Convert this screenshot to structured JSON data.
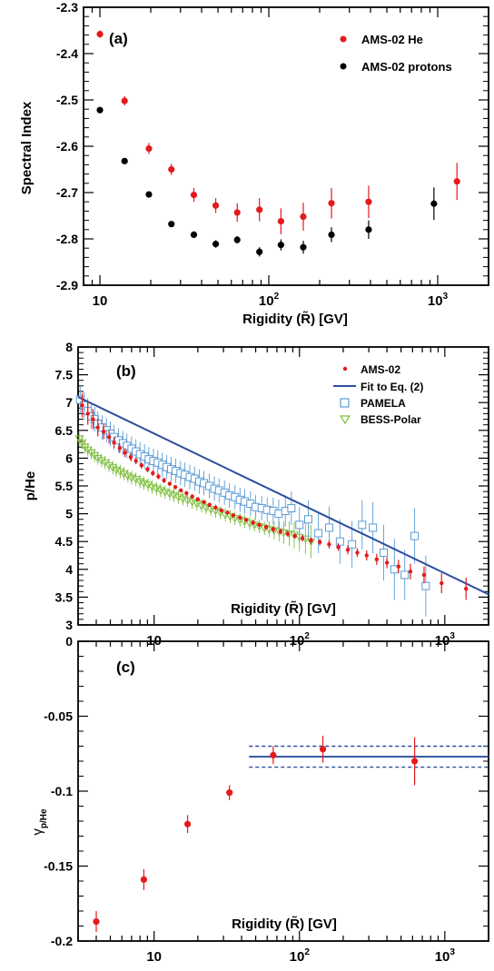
{
  "chart_data": [
    {
      "panel": "(a)",
      "type": "scatter",
      "xlabel_main": "Rigidity (",
      "xlabel_sym": "R̃",
      "xlabel_tail": ") [GV]",
      "ylabel": "Spectral Index",
      "x_scale": "log",
      "xlim": [
        8,
        2000
      ],
      "ylim": [
        -2.9,
        -2.3
      ],
      "y_ticks": [
        -2.9,
        -2.8,
        -2.7,
        -2.6,
        -2.5,
        -2.4,
        -2.3
      ],
      "y_tick_labels": [
        "-2.9",
        "-2.8",
        "-2.7",
        "-2.6",
        "-2.5",
        "-2.4",
        "-2.3"
      ],
      "legend_position": "top-right",
      "series": [
        {
          "name": "AMS-02 He",
          "color": "#e41a1c",
          "x": [
            10,
            14,
            19.5,
            26.5,
            36,
            48.5,
            65,
            88,
            118,
            160,
            235,
            390,
            1300
          ],
          "y": [
            -2.358,
            -2.502,
            -2.605,
            -2.65,
            -2.705,
            -2.728,
            -2.743,
            -2.737,
            -2.762,
            -2.752,
            -2.723,
            -2.72,
            -2.676
          ],
          "err": [
            0.008,
            0.01,
            0.012,
            0.012,
            0.015,
            0.016,
            0.02,
            0.025,
            0.028,
            0.03,
            0.033,
            0.035,
            0.04
          ]
        },
        {
          "name": "AMS-02 protons",
          "color": "#000000",
          "x": [
            10,
            14,
            19.5,
            26.5,
            36,
            48.5,
            65,
            88,
            118,
            160,
            235,
            390,
            950
          ],
          "y": [
            -2.522,
            -2.632,
            -2.704,
            -2.768,
            -2.791,
            -2.811,
            -2.802,
            -2.828,
            -2.813,
            -2.818,
            -2.791,
            -2.78,
            -2.724
          ],
          "err": [
            0.004,
            0.005,
            0.006,
            0.006,
            0.007,
            0.008,
            0.008,
            0.01,
            0.012,
            0.014,
            0.016,
            0.02,
            0.035
          ]
        }
      ]
    },
    {
      "panel": "(b)",
      "type": "scatter",
      "xlabel_main": "Rigidity (",
      "xlabel_sym": "R̃",
      "xlabel_tail": ") [GV]",
      "ylabel": "p/He",
      "x_scale": "log",
      "xlim": [
        3,
        2000
      ],
      "ylim": [
        3,
        8
      ],
      "y_ticks": [
        3,
        3.5,
        4,
        4.5,
        5,
        5.5,
        6,
        6.5,
        7,
        7.5,
        8
      ],
      "y_tick_labels": [
        "3",
        "3.5",
        "4",
        "4.5",
        "5",
        "5.5",
        "6",
        "6.5",
        "7",
        "7.5",
        "8"
      ],
      "legend_position": "top-right",
      "fit_label": "Fit to Eq. (2)",
      "fit_color": "#2c4f9e",
      "fit_x": [
        3,
        2000
      ],
      "fit_y": [
        7.1,
        3.55
      ],
      "series": [
        {
          "name": "AMS-02",
          "color": "#e41a1c",
          "x": [
            3.2,
            3.5,
            3.8,
            4.1,
            4.5,
            4.9,
            5.3,
            5.8,
            6.3,
            6.9,
            7.5,
            8.2,
            9,
            9.8,
            10.7,
            11.7,
            12.8,
            14,
            15.3,
            16.7,
            18.3,
            20,
            22,
            24,
            26.5,
            29,
            32,
            35,
            39,
            43,
            48,
            53,
            59,
            66,
            74,
            83,
            93,
            105,
            120,
            138,
            160,
            185,
            215,
            250,
            290,
            340,
            400,
            480,
            580,
            720,
            950,
            1400
          ],
          "y": [
            6.95,
            6.8,
            6.7,
            6.55,
            6.48,
            6.38,
            6.28,
            6.18,
            6.1,
            6.02,
            5.95,
            5.87,
            5.8,
            5.73,
            5.67,
            5.6,
            5.54,
            5.48,
            5.42,
            5.37,
            5.31,
            5.26,
            5.21,
            5.16,
            5.11,
            5.06,
            5.02,
            4.97,
            4.93,
            4.89,
            4.84,
            4.8,
            4.76,
            4.72,
            4.68,
            4.64,
            4.6,
            4.56,
            4.52,
            4.49,
            4.45,
            4.4,
            4.35,
            4.3,
            4.25,
            4.18,
            4.12,
            4.05,
            3.96,
            3.9,
            3.75,
            3.65
          ],
          "err": [
            0.22,
            0.2,
            0.18,
            0.16,
            0.14,
            0.12,
            0.1,
            0.09,
            0.08,
            0.07,
            0.06,
            0.06,
            0.05,
            0.05,
            0.05,
            0.05,
            0.04,
            0.04,
            0.04,
            0.04,
            0.04,
            0.04,
            0.04,
            0.04,
            0.04,
            0.04,
            0.04,
            0.04,
            0.04,
            0.04,
            0.04,
            0.04,
            0.05,
            0.05,
            0.05,
            0.05,
            0.05,
            0.06,
            0.06,
            0.06,
            0.07,
            0.07,
            0.08,
            0.08,
            0.09,
            0.1,
            0.1,
            0.12,
            0.14,
            0.15,
            0.18,
            0.2
          ]
        },
        {
          "name": "PAMELA",
          "color": "#5b9bd5",
          "x": [
            3.1,
            3.3,
            3.5,
            3.7,
            3.9,
            4.1,
            4.4,
            4.7,
            5,
            5.3,
            5.7,
            6.1,
            6.5,
            7,
            7.5,
            8,
            8.6,
            9.2,
            9.9,
            10.6,
            11.4,
            12.2,
            13.1,
            14.1,
            15.2,
            16.3,
            17.6,
            19,
            20.5,
            22,
            24,
            26,
            28,
            30.5,
            33,
            36,
            39,
            42,
            46,
            50,
            55,
            60,
            66,
            72,
            80,
            88,
            100,
            115,
            135,
            160,
            190,
            230,
            270,
            320,
            380,
            450,
            530,
            620,
            740
          ],
          "y": [
            7.05,
            6.95,
            6.85,
            6.75,
            6.7,
            6.62,
            6.55,
            6.5,
            6.44,
            6.38,
            6.32,
            6.27,
            6.22,
            6.17,
            6.12,
            6.07,
            6.03,
            5.98,
            5.95,
            5.92,
            5.88,
            5.84,
            5.8,
            5.77,
            5.73,
            5.7,
            5.66,
            5.63,
            5.58,
            5.55,
            5.5,
            5.45,
            5.42,
            5.38,
            5.33,
            5.3,
            5.25,
            5.22,
            5.18,
            5.12,
            5.1,
            5.07,
            5.05,
            5.0,
            5.05,
            5.1,
            4.8,
            4.9,
            4.65,
            4.75,
            4.5,
            4.45,
            4.8,
            4.75,
            4.3,
            4.0,
            3.9,
            4.6,
            3.7
          ],
          "err": [
            0.25,
            0.24,
            0.23,
            0.22,
            0.22,
            0.22,
            0.22,
            0.22,
            0.22,
            0.22,
            0.22,
            0.22,
            0.22,
            0.22,
            0.22,
            0.22,
            0.22,
            0.22,
            0.22,
            0.22,
            0.22,
            0.22,
            0.22,
            0.22,
            0.22,
            0.22,
            0.22,
            0.22,
            0.22,
            0.22,
            0.22,
            0.22,
            0.22,
            0.22,
            0.22,
            0.22,
            0.22,
            0.22,
            0.22,
            0.22,
            0.22,
            0.22,
            0.24,
            0.26,
            0.28,
            0.3,
            0.32,
            0.34,
            0.36,
            0.38,
            0.4,
            0.42,
            0.44,
            0.46,
            0.5,
            0.55,
            0.45,
            0.5,
            0.55
          ]
        },
        {
          "name": "BESS-Polar",
          "color": "#7fbf3f",
          "x": [
            3.05,
            3.2,
            3.35,
            3.5,
            3.7,
            3.9,
            4.1,
            4.35,
            4.6,
            4.9,
            5.2,
            5.5,
            5.85,
            6.2,
            6.6,
            7,
            7.5,
            8,
            8.5,
            9.1,
            9.7,
            10.4,
            11.1,
            11.9,
            12.8,
            13.7,
            14.7,
            15.8,
            17,
            18.3,
            19.7,
            21.2,
            22.8,
            24.6,
            26.5,
            28.6,
            30.9,
            33.4,
            36,
            39,
            42,
            45.5,
            49,
            53,
            57.5,
            62,
            67,
            72.5,
            78,
            85,
            92,
            100,
            110,
            120
          ],
          "y": [
            6.35,
            6.28,
            6.2,
            6.15,
            6.1,
            6.05,
            6.0,
            5.96,
            5.92,
            5.87,
            5.83,
            5.79,
            5.76,
            5.72,
            5.68,
            5.65,
            5.62,
            5.58,
            5.55,
            5.52,
            5.48,
            5.45,
            5.42,
            5.39,
            5.36,
            5.33,
            5.3,
            5.27,
            5.24,
            5.21,
            5.18,
            5.14,
            5.11,
            5.08,
            5.05,
            5.02,
            4.98,
            4.95,
            4.92,
            4.89,
            4.86,
            4.83,
            4.8,
            4.77,
            4.74,
            4.72,
            4.7,
            4.68,
            4.66,
            4.64,
            4.62,
            4.58,
            4.55,
            4.5
          ],
          "err": [
            0.12,
            0.12,
            0.12,
            0.12,
            0.12,
            0.12,
            0.12,
            0.12,
            0.12,
            0.12,
            0.12,
            0.12,
            0.12,
            0.12,
            0.12,
            0.12,
            0.12,
            0.12,
            0.12,
            0.12,
            0.12,
            0.12,
            0.12,
            0.12,
            0.12,
            0.12,
            0.12,
            0.12,
            0.12,
            0.12,
            0.12,
            0.12,
            0.12,
            0.12,
            0.12,
            0.12,
            0.12,
            0.12,
            0.12,
            0.12,
            0.12,
            0.12,
            0.12,
            0.12,
            0.12,
            0.14,
            0.16,
            0.18,
            0.2,
            0.22,
            0.24,
            0.26,
            0.28,
            0.3
          ]
        }
      ]
    },
    {
      "panel": "(c)",
      "type": "scatter",
      "xlabel_main": "Rigidity (",
      "xlabel_sym": "R̃",
      "xlabel_tail": ") [GV]",
      "ylabel_main": "γ",
      "ylabel_sub": "p/He",
      "x_scale": "log",
      "xlim": [
        3,
        2000
      ],
      "ylim": [
        -0.2,
        0
      ],
      "y_ticks": [
        -0.2,
        -0.15,
        -0.1,
        -0.05,
        0
      ],
      "y_tick_labels": [
        "-0.2",
        "-0.15",
        "-0.1",
        "-0.05",
        "0"
      ],
      "band": {
        "x": [
          45,
          2000
        ],
        "center": -0.077,
        "low": -0.084,
        "high": -0.07,
        "color": "#2c4f9e"
      },
      "series": [
        {
          "name": "",
          "color": "#e41a1c",
          "x": [
            4,
            8.5,
            17,
            33,
            66,
            145,
            620
          ],
          "y": [
            -0.187,
            -0.159,
            -0.122,
            -0.101,
            -0.076,
            -0.072,
            -0.08
          ],
          "err": [
            0.007,
            0.007,
            0.006,
            0.005,
            0.006,
            0.009,
            0.016
          ]
        }
      ]
    }
  ]
}
